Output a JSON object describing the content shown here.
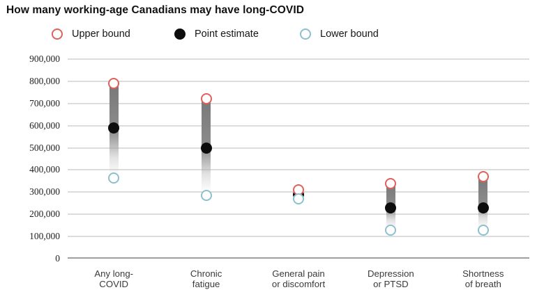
{
  "title": "How many working-age Canadians may have long-COVID",
  "legend": {
    "items": [
      {
        "label": "Upper bound",
        "marker": "open-circle",
        "color": "#e0605c"
      },
      {
        "label": "Point estimate",
        "marker": "filled-circle",
        "color": "#0d0d0d"
      },
      {
        "label": "Lower bound",
        "marker": "open-circle",
        "color": "#8ebfcc"
      }
    ]
  },
  "colors": {
    "upper_bound": "#e0605c",
    "point_estimate": "#0d0d0d",
    "lower_bound": "#8ebfcc",
    "gridline": "#dcdcdc",
    "baseline": "#9f9f9f",
    "band_gradient_top": "#787878",
    "band_gradient_mid": "#8c8c8c"
  },
  "chart_data": {
    "type": "scatter",
    "subtype": "range-dot-plot",
    "title": "How many working-age Canadians may have long-COVID",
    "categories": [
      [
        "Any long-",
        "COVID"
      ],
      [
        "Chronic",
        "fatigue"
      ],
      [
        "General pain",
        "or discomfort"
      ],
      [
        "Depression",
        "or PTSD"
      ],
      [
        "Shortness",
        "of breath"
      ]
    ],
    "series": [
      {
        "name": "Upper bound",
        "values": [
          790000,
          720000,
          310000,
          340000,
          370000
        ]
      },
      {
        "name": "Point estimate",
        "values": [
          590000,
          500000,
          290000,
          230000,
          230000
        ]
      },
      {
        "name": "Lower bound",
        "values": [
          365000,
          285000,
          270000,
          130000,
          130000
        ]
      }
    ],
    "xlabel": "",
    "ylabel": "",
    "ylim": [
      0,
      900000
    ],
    "ytick_step": 100000,
    "ytick_labels": [
      "0",
      "100,000",
      "200,000",
      "300,000",
      "400,000",
      "500,000",
      "600,000",
      "700,000",
      "800,000",
      "900,000"
    ],
    "grid": true,
    "legend_position": "top"
  }
}
